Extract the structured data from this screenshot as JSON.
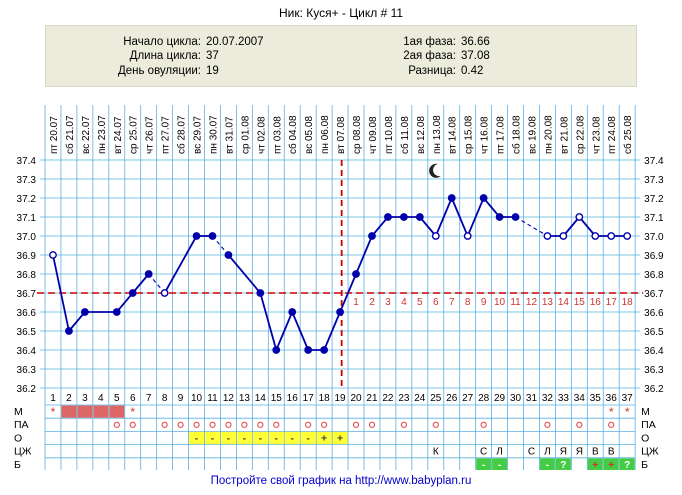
{
  "header": {
    "title": "Ник: Куся+ - Цикл # 11"
  },
  "info": {
    "start_label": "Начало цикла:",
    "start_value": "20.07.2007",
    "length_label": "Длина цикла:",
    "length_value": "37",
    "ovulation_label": "День овуляции:",
    "ovulation_value": "19",
    "phase1_label": "1ая фаза:",
    "phase1_value": "36.66",
    "phase2_label": "2ая фаза:",
    "phase2_value": "37.08",
    "diff_label": "Разница:",
    "diff_value": "0.42"
  },
  "chart_data": {
    "type": "line",
    "title": "",
    "xlabel": "",
    "ylabel": "",
    "ylim": [
      36.2,
      37.4
    ],
    "yticks": [
      "36.2",
      "36.3",
      "36.4",
      "36.5",
      "36.6",
      "36.7",
      "36.8",
      "36.9",
      "37.0",
      "37.1",
      "37.2",
      "37.3",
      "37.4"
    ],
    "days": [
      1,
      2,
      3,
      4,
      5,
      6,
      7,
      8,
      9,
      10,
      11,
      12,
      13,
      14,
      15,
      16,
      17,
      18,
      19,
      20,
      21,
      22,
      23,
      24,
      25,
      26,
      27,
      28,
      29,
      30,
      31,
      32,
      33,
      34,
      35,
      36,
      37
    ],
    "weekdays": [
      "пт",
      "сб",
      "вс",
      "пн",
      "вт",
      "ср",
      "чт",
      "пт",
      "сб",
      "вс",
      "пн",
      "вт",
      "ср",
      "чт",
      "пт",
      "сб",
      "вс",
      "пн",
      "вт",
      "ср",
      "чт",
      "пт",
      "сб",
      "вс",
      "пн",
      "вт",
      "ср",
      "чт",
      "пт",
      "сб",
      "вс",
      "пн",
      "вт",
      "ср",
      "чт",
      "пт",
      "сб"
    ],
    "dates": [
      "20.07",
      "21.07",
      "22.07",
      "23.07",
      "24.07",
      "25.07",
      "26.07",
      "27.07",
      "28.07",
      "29.07",
      "30.07",
      "31.07",
      "01.08",
      "02.08",
      "03.08",
      "04.08",
      "05.08",
      "06.08",
      "07.08",
      "08.08",
      "09.08",
      "10.08",
      "11.08",
      "12.08",
      "13.08",
      "14.08",
      "15.08",
      "16.08",
      "17.08",
      "18.08",
      "19.08",
      "20.08",
      "21.08",
      "22.08",
      "23.08",
      "24.08",
      "25.08"
    ],
    "series": [
      {
        "color": "#0000aa",
        "values": [
          36.9,
          36.5,
          36.6,
          null,
          36.6,
          36.7,
          36.8,
          36.7,
          null,
          37.0,
          37.0,
          36.9,
          null,
          36.7,
          36.4,
          36.6,
          36.4,
          36.4,
          36.6,
          36.8,
          37.0,
          37.1,
          37.1,
          37.1,
          37.0,
          37.2,
          37.0,
          37.2,
          37.1,
          37.1,
          null,
          37.0,
          37.0,
          37.1,
          37.0,
          37.0,
          37.0
        ],
        "markers": [
          "open",
          "filled",
          "filled",
          null,
          "filled",
          "filled",
          "filled",
          "open",
          null,
          "filled",
          "filled",
          "filled",
          null,
          "filled",
          "filled",
          "filled",
          "filled",
          "filled",
          "filled",
          "filled",
          "filled",
          "filled",
          "filled",
          "filled",
          "open",
          "filled",
          "open",
          "filled",
          "filled",
          "filled",
          null,
          "open",
          "open",
          "open",
          "open",
          "open",
          "open"
        ],
        "dashed_segments_after_day": [
          7,
          11,
          13,
          30
        ]
      }
    ],
    "coverline": 36.7,
    "coverline_color": "#cc0000",
    "ovulation_day": 19,
    "luteal_day_labels": [
      "1",
      "2",
      "3",
      "4",
      "5",
      "6",
      "7",
      "8",
      "9",
      "10",
      "11",
      "12",
      "13",
      "14",
      "15",
      "16",
      "17",
      "18"
    ],
    "moon_day": 25,
    "rows": {
      "labels": [
        "М",
        "ПА",
        "О",
        "ЦЖ",
        "Б"
      ],
      "M": {
        "filled_days": [
          2,
          3,
          4,
          5
        ],
        "star_days": [
          1,
          6,
          36,
          37
        ],
        "fill_color": "#dd6666"
      },
      "PA": {
        "circle_days": [
          5,
          6,
          8,
          9,
          10,
          11,
          12,
          13,
          14,
          15,
          17,
          18,
          20,
          21,
          23,
          25,
          28,
          32,
          34,
          36
        ]
      },
      "O": {
        "days": [
          10,
          11,
          12,
          13,
          14,
          15,
          16,
          17,
          18,
          19
        ],
        "symbols": [
          "-",
          "-",
          "-",
          "-",
          "-",
          "-",
          "-",
          "-",
          "+",
          "+"
        ],
        "color": "#ffff33"
      },
      "CZ": {
        "days": [
          25,
          28,
          29,
          31,
          32,
          33,
          34,
          35,
          36
        ],
        "symbols": [
          "К",
          "С",
          "Л",
          "С",
          "Л",
          "Я",
          "Я",
          "В",
          "В"
        ]
      },
      "B": {
        "days": [
          28,
          29,
          32,
          33,
          35,
          36,
          37
        ],
        "symbols": [
          "-",
          "-",
          "-",
          "?",
          "+",
          "+",
          "?"
        ],
        "color": "#44cc44"
      }
    }
  },
  "footer": {
    "text": "Постройте свой график на http://www.babyplan.ru"
  }
}
